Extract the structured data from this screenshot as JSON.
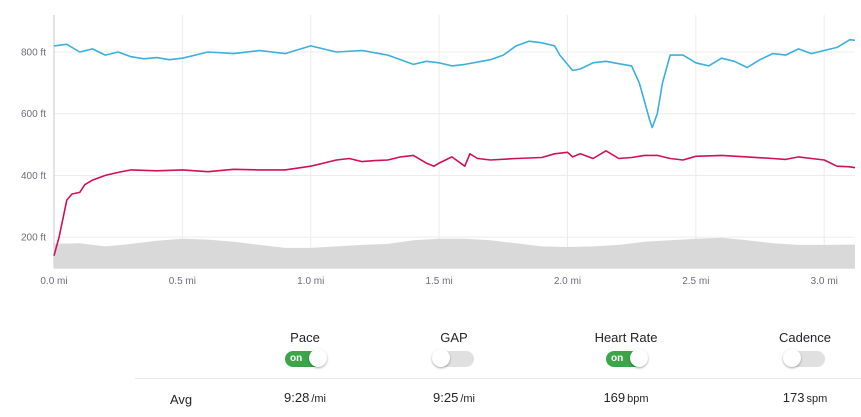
{
  "chart_data": {
    "type": "line",
    "x_axis": {
      "ticks": [
        0.0,
        0.5,
        1.0,
        1.5,
        2.0,
        2.5,
        3.0
      ],
      "tick_labels": [
        "0.0 mi",
        "0.5 mi",
        "1.0 mi",
        "1.5 mi",
        "2.0 mi",
        "2.5 mi",
        "3.0 mi"
      ],
      "range": [
        0,
        3.12
      ]
    },
    "y_axis": {
      "ticks": [
        200,
        400,
        600,
        800
      ],
      "tick_labels": [
        "200 ft",
        "400 ft",
        "600 ft",
        "800 ft"
      ],
      "range": [
        100,
        920
      ]
    },
    "grid": true,
    "series": [
      {
        "key": "pace",
        "style": "line",
        "color": "#3ab0dc",
        "x": [
          0.0,
          0.05,
          0.1,
          0.15,
          0.2,
          0.25,
          0.3,
          0.35,
          0.4,
          0.45,
          0.5,
          0.55,
          0.6,
          0.7,
          0.8,
          0.9,
          1.0,
          1.1,
          1.2,
          1.3,
          1.35,
          1.4,
          1.45,
          1.5,
          1.55,
          1.6,
          1.7,
          1.75,
          1.8,
          1.85,
          1.9,
          1.95,
          1.97,
          2.0,
          2.02,
          2.05,
          2.1,
          2.15,
          2.2,
          2.25,
          2.28,
          2.3,
          2.32,
          2.33,
          2.35,
          2.37,
          2.39,
          2.4,
          2.45,
          2.5,
          2.55,
          2.6,
          2.65,
          2.7,
          2.75,
          2.8,
          2.85,
          2.9,
          2.95,
          3.0,
          3.05,
          3.1,
          3.12
        ],
        "y": [
          820,
          825,
          800,
          810,
          790,
          800,
          785,
          778,
          782,
          775,
          780,
          790,
          800,
          795,
          805,
          795,
          820,
          800,
          805,
          790,
          775,
          760,
          770,
          765,
          755,
          760,
          775,
          790,
          820,
          835,
          830,
          820,
          790,
          760,
          740,
          745,
          765,
          770,
          762,
          755,
          700,
          640,
          580,
          555,
          600,
          700,
          760,
          790,
          790,
          765,
          755,
          780,
          770,
          750,
          775,
          795,
          790,
          810,
          795,
          805,
          815,
          840,
          838
        ]
      },
      {
        "key": "heart_rate",
        "style": "line",
        "color": "#d0105a",
        "x": [
          0.0,
          0.02,
          0.05,
          0.07,
          0.1,
          0.12,
          0.15,
          0.2,
          0.25,
          0.3,
          0.4,
          0.5,
          0.6,
          0.7,
          0.8,
          0.9,
          1.0,
          1.05,
          1.1,
          1.15,
          1.2,
          1.25,
          1.3,
          1.35,
          1.4,
          1.45,
          1.48,
          1.5,
          1.55,
          1.6,
          1.62,
          1.65,
          1.7,
          1.8,
          1.9,
          1.95,
          2.0,
          2.02,
          2.05,
          2.1,
          2.15,
          2.2,
          2.25,
          2.3,
          2.35,
          2.4,
          2.45,
          2.5,
          2.6,
          2.7,
          2.8,
          2.85,
          2.9,
          2.95,
          3.0,
          3.05,
          3.1,
          3.12
        ],
        "y": [
          140,
          200,
          320,
          340,
          345,
          370,
          385,
          400,
          410,
          418,
          415,
          418,
          412,
          420,
          418,
          418,
          430,
          440,
          450,
          455,
          445,
          448,
          450,
          460,
          465,
          440,
          430,
          440,
          460,
          430,
          470,
          455,
          450,
          455,
          458,
          470,
          475,
          460,
          470,
          455,
          480,
          455,
          458,
          465,
          465,
          455,
          450,
          462,
          465,
          460,
          455,
          452,
          460,
          455,
          450,
          430,
          428,
          425
        ]
      },
      {
        "key": "elevation",
        "style": "area",
        "color": "#d9d9d9",
        "x": [
          0.0,
          0.1,
          0.2,
          0.3,
          0.4,
          0.5,
          0.6,
          0.7,
          0.8,
          0.9,
          1.0,
          1.1,
          1.2,
          1.3,
          1.4,
          1.5,
          1.6,
          1.7,
          1.8,
          1.9,
          2.0,
          2.1,
          2.2,
          2.3,
          2.4,
          2.5,
          2.6,
          2.7,
          2.8,
          2.9,
          3.0,
          3.1,
          3.12
        ],
        "y": [
          178,
          180,
          170,
          178,
          188,
          195,
          192,
          185,
          175,
          165,
          165,
          170,
          175,
          178,
          190,
          195,
          195,
          190,
          180,
          170,
          168,
          170,
          175,
          185,
          190,
          195,
          198,
          190,
          180,
          175,
          175,
          176,
          176
        ]
      }
    ]
  },
  "controls": [
    {
      "key": "pace",
      "label": "Pace",
      "state": "on",
      "on_text": "on"
    },
    {
      "key": "gap",
      "label": "GAP",
      "state": "off",
      "on_text": "on"
    },
    {
      "key": "heart_rate",
      "label": "Heart Rate",
      "state": "on",
      "on_text": "on"
    },
    {
      "key": "cadence",
      "label": "Cadence",
      "state": "off",
      "on_text": "on"
    }
  ],
  "averages": {
    "label": "Avg",
    "values": [
      {
        "value": "9:28",
        "unit": "/mi"
      },
      {
        "value": "9:25",
        "unit": "/mi"
      },
      {
        "value": "169",
        "unit": "bpm"
      },
      {
        "value": "173",
        "unit": "spm"
      }
    ]
  }
}
